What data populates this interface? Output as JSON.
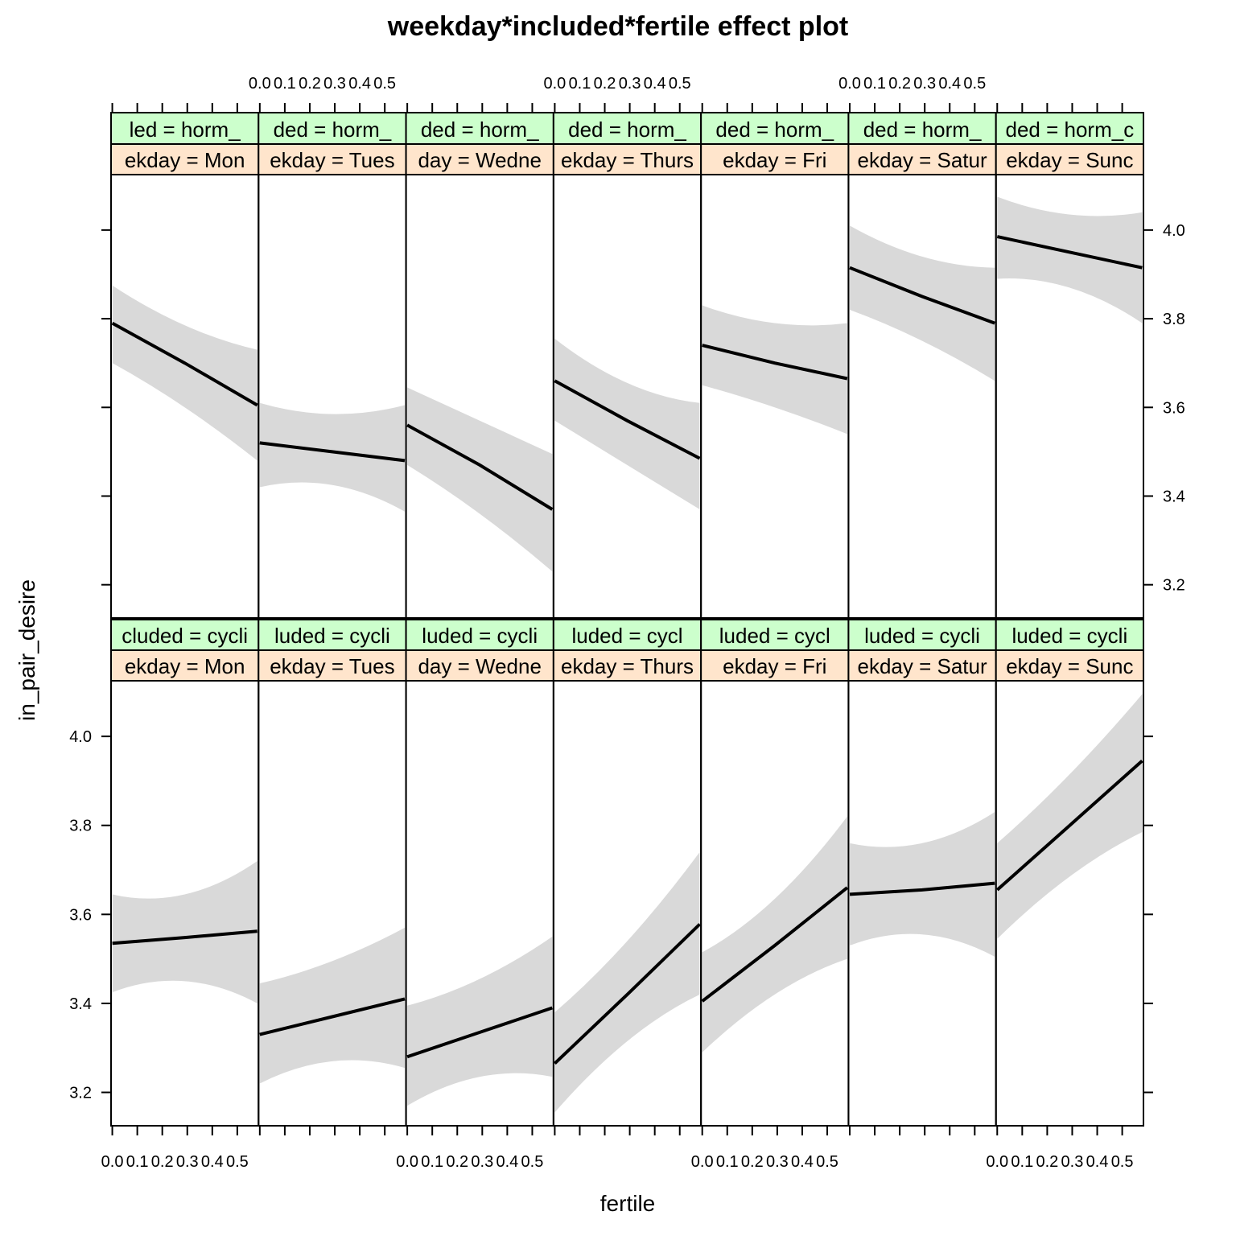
{
  "chart_data": {
    "type": "line",
    "title": "weekday*included*fertile effect plot",
    "xlabel": "fertile",
    "ylabel": "in_pair_desire",
    "x_ticks": [
      0.0,
      0.1,
      0.2,
      0.3,
      0.4,
      0.5
    ],
    "x_tick_labels": [
      "0.0",
      "0.1",
      "0.2",
      "0.3",
      "0.4",
      "0.5"
    ],
    "xlim": [
      -0.005,
      0.585
    ],
    "y_ticks": [
      3.2,
      3.4,
      3.6,
      3.8,
      4.0
    ],
    "y_tick_labels": [
      "3.2",
      "3.4",
      "3.6",
      "3.8",
      "4.0"
    ],
    "ylim": [
      3.125,
      4.125
    ],
    "weekday_strip_labels": [
      "ekday = Mon",
      "ekday = Tues",
      "day = Wedne",
      "ekday = Thurs",
      "ekday = Fri",
      "ekday = Satur",
      "ekday = Sunc"
    ],
    "colors": {
      "line": "#000000",
      "band": "#d9d9d9",
      "strip_included": "#ccffcc",
      "strip_weekday": "#ffe5cc"
    },
    "rows": [
      {
        "included_strip_labels": [
          "led = horm_",
          "ded = horm_",
          "ded = horm_",
          "ded = horm_",
          "ded = horm_",
          "ded = horm_",
          "ded = horm_c"
        ],
        "panels": [
          {
            "x": [
              0.0,
              0.29,
              0.58
            ],
            "fit": [
              3.79,
              3.7,
              3.605
            ],
            "lower": [
              3.7,
              3.6,
              3.48
            ],
            "upper": [
              3.875,
              3.785,
              3.73
            ]
          },
          {
            "x": [
              0.0,
              0.29,
              0.58
            ],
            "fit": [
              3.52,
              3.5,
              3.48
            ],
            "lower": [
              3.42,
              3.425,
              3.365
            ],
            "upper": [
              3.61,
              3.585,
              3.605
            ]
          },
          {
            "x": [
              0.0,
              0.29,
              0.58
            ],
            "fit": [
              3.56,
              3.47,
              3.37
            ],
            "lower": [
              3.47,
              3.36,
              3.23
            ],
            "upper": [
              3.645,
              3.57,
              3.495
            ]
          },
          {
            "x": [
              0.0,
              0.29,
              0.58
            ],
            "fit": [
              3.66,
              3.57,
              3.485
            ],
            "lower": [
              3.57,
              3.47,
              3.37
            ],
            "upper": [
              3.755,
              3.655,
              3.61
            ]
          },
          {
            "x": [
              0.0,
              0.29,
              0.58
            ],
            "fit": [
              3.74,
              3.7,
              3.665
            ],
            "lower": [
              3.65,
              3.6,
              3.54
            ],
            "upper": [
              3.83,
              3.79,
              3.79
            ]
          },
          {
            "x": [
              0.0,
              0.29,
              0.58
            ],
            "fit": [
              3.915,
              3.85,
              3.79
            ],
            "lower": [
              3.82,
              3.75,
              3.66
            ],
            "upper": [
              4.01,
              3.94,
              3.915
            ]
          },
          {
            "x": [
              0.0,
              0.29,
              0.58
            ],
            "fit": [
              3.985,
              3.95,
              3.915
            ],
            "lower": [
              3.89,
              3.87,
              3.79
            ],
            "upper": [
              4.075,
              4.035,
              4.04
            ]
          }
        ]
      },
      {
        "included_strip_labels": [
          "cluded = cycli",
          "luded = cycli",
          "luded = cycli",
          "luded = cycl",
          "luded = cycl",
          "luded = cycli",
          "luded = cycli"
        ],
        "panels": [
          {
            "x": [
              0.0,
              0.29,
              0.58
            ],
            "fit": [
              3.535,
              3.548,
              3.562
            ],
            "lower": [
              3.425,
              3.45,
              3.4
            ],
            "upper": [
              3.645,
              3.645,
              3.72
            ]
          },
          {
            "x": [
              0.0,
              0.29,
              0.58
            ],
            "fit": [
              3.33,
              3.37,
              3.41
            ],
            "lower": [
              3.22,
              3.27,
              3.255
            ],
            "upper": [
              3.445,
              3.495,
              3.57
            ]
          },
          {
            "x": [
              0.0,
              0.29,
              0.58
            ],
            "fit": [
              3.28,
              3.335,
              3.39
            ],
            "lower": [
              3.17,
              3.235,
              3.235
            ],
            "upper": [
              3.395,
              3.455,
              3.55
            ]
          },
          {
            "x": [
              0.0,
              0.29,
              0.58
            ],
            "fit": [
              3.265,
              3.42,
              3.578
            ],
            "lower": [
              3.155,
              3.315,
              3.42
            ],
            "upper": [
              3.38,
              3.54,
              3.74
            ]
          },
          {
            "x": [
              0.0,
              0.29,
              0.58
            ],
            "fit": [
              3.405,
              3.53,
              3.66
            ],
            "lower": [
              3.29,
              3.42,
              3.5
            ],
            "upper": [
              3.515,
              3.635,
              3.82
            ]
          },
          {
            "x": [
              0.0,
              0.29,
              0.58
            ],
            "fit": [
              3.645,
              3.655,
              3.67
            ],
            "lower": [
              3.53,
              3.555,
              3.505
            ],
            "upper": [
              3.76,
              3.76,
              3.83
            ]
          },
          {
            "x": [
              0.0,
              0.29,
              0.58
            ],
            "fit": [
              3.655,
              3.8,
              3.945
            ],
            "lower": [
              3.545,
              3.685,
              3.785
            ],
            "upper": [
              3.76,
              3.915,
              4.095
            ]
          }
        ]
      }
    ]
  }
}
